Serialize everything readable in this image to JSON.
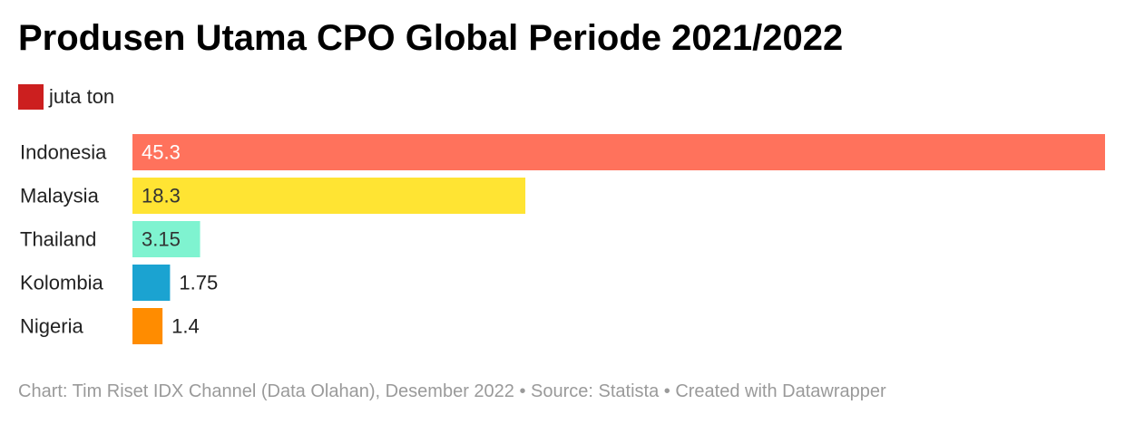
{
  "title": "Produsen Utama CPO Global Periode 2021/2022",
  "legend": {
    "label": "juta ton",
    "color": "#cc1f1f"
  },
  "footer": {
    "text": "Chart: Tim Riset IDX Channel (Data Olahan), Desember 2022 • Source: Statista • Created with Datawrapper"
  },
  "chart_data": {
    "type": "bar",
    "orientation": "horizontal",
    "categories": [
      "Indonesia",
      "Malaysia",
      "Thailand",
      "Kolombia",
      "Nigeria"
    ],
    "values": [
      45.3,
      18.3,
      3.15,
      1.75,
      1.4
    ],
    "value_labels": [
      "45.3",
      "18.3",
      "3.15",
      "1.75",
      "1.4"
    ],
    "colors": [
      "#ff725c",
      "#ffe433",
      "#7ff3d0",
      "#1ba3d1",
      "#ff8c00"
    ],
    "label_colors": [
      "#ffffff",
      "#333333",
      "#333333",
      "#222222",
      "#222222"
    ],
    "xlim": [
      0,
      45.3
    ],
    "grid": false,
    "legend_position": "top-left"
  }
}
